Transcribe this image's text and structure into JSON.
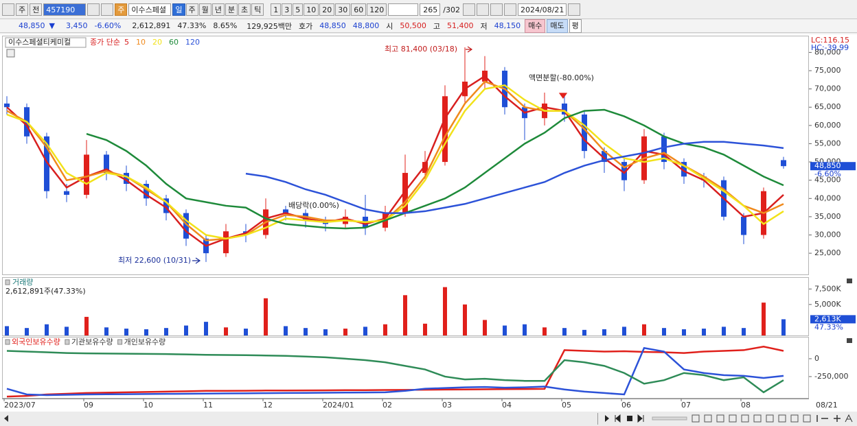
{
  "toolbar": {
    "market": "주",
    "mode": "전",
    "code": "457190",
    "type_badge": "주",
    "stock_name": "이수스페셜",
    "periods": [
      "일",
      "주",
      "월",
      "년",
      "분",
      "초",
      "틱"
    ],
    "intervals": [
      "1",
      "3",
      "5",
      "10",
      "20",
      "30",
      "60",
      "120"
    ],
    "view_count": "265",
    "total_count": "/302",
    "date": "2024/08/21"
  },
  "quote": {
    "price": "48,850",
    "arrow": "▼",
    "change": "3,450",
    "change_pct": "-6.60%",
    "volume": "2,612,891",
    "volume_ratio": "47.33%",
    "turnover": "8.65%",
    "amount": "129,925백만",
    "ask_label": "호가",
    "ask": "48,850",
    "bid": "48,800",
    "open_label": "시",
    "open": "50,500",
    "high_label": "고",
    "high": "51,400",
    "low_label": "저",
    "low": "48,150",
    "buttons": [
      "매수",
      "매도",
      "평"
    ]
  },
  "chart_data": [
    {
      "type": "candlestick",
      "title": "이수스페셜티케미컬",
      "legend_prefix": "종가 단순",
      "categories": [
        "2023/07",
        null,
        null,
        null,
        "09",
        null,
        null,
        "10",
        null,
        null,
        "11",
        null,
        null,
        "12",
        null,
        null,
        "2024/01",
        null,
        null,
        "02",
        null,
        null,
        "03",
        null,
        null,
        "04",
        null,
        null,
        "05",
        null,
        null,
        "06",
        null,
        null,
        "07",
        null,
        null,
        "08",
        null,
        null
      ],
      "last_date": "08/21",
      "open": [
        66000,
        65000,
        57000,
        42000,
        41000,
        52000,
        47000,
        44000,
        40000,
        36000,
        29000,
        25000,
        31000,
        30000,
        37000,
        36000,
        34000,
        33000,
        35000,
        32000,
        36000,
        47000,
        50000,
        68000,
        72000,
        75000,
        65000,
        62000,
        66000,
        63000,
        53000,
        50000,
        45000,
        57000,
        50000,
        46000,
        45000,
        35000,
        30000,
        50500
      ],
      "high": [
        68000,
        66000,
        58000,
        44000,
        56000,
        53000,
        49000,
        45000,
        41000,
        37000,
        30000,
        33000,
        33000,
        40000,
        38000,
        37000,
        35000,
        37000,
        41000,
        38000,
        52000,
        53000,
        71000,
        81400,
        79000,
        76000,
        66000,
        69000,
        68000,
        64000,
        54000,
        51000,
        59000,
        58000,
        51000,
        47000,
        46000,
        36000,
        43000,
        51400
      ],
      "low": [
        63000,
        55000,
        40000,
        39000,
        40000,
        45000,
        42000,
        38000,
        34000,
        27000,
        22600,
        24000,
        28000,
        29000,
        34000,
        32000,
        31000,
        32000,
        30000,
        31000,
        35000,
        45000,
        49000,
        66000,
        70000,
        63000,
        56000,
        60000,
        61000,
        51000,
        47000,
        42000,
        44000,
        48000,
        44000,
        43000,
        34000,
        27500,
        29000,
        48150
      ],
      "close": [
        65000,
        57000,
        42000,
        41000,
        52000,
        47000,
        44000,
        40000,
        36000,
        29000,
        25000,
        31000,
        30000,
        37000,
        36000,
        34000,
        33000,
        35000,
        32000,
        36000,
        47000,
        50000,
        68000,
        72000,
        75000,
        65000,
        62000,
        66000,
        63000,
        53000,
        50000,
        45000,
        57000,
        50000,
        46000,
        45000,
        35000,
        30000,
        42000,
        48850
      ],
      "up_color": "#e0201b",
      "down_color": "#1f4fd6",
      "series": [
        {
          "name": "5",
          "color": "#d81f1f",
          "values": [
            65000,
            60000,
            50000,
            43000,
            46000,
            48000,
            45000,
            41000,
            37500,
            31000,
            27000,
            29000,
            30500,
            34500,
            36000,
            34500,
            33500,
            34500,
            33000,
            34500,
            42000,
            49000,
            62000,
            70000,
            73500,
            68000,
            63500,
            65000,
            64000,
            56000,
            51000,
            47000,
            53000,
            52000,
            47500,
            45000,
            40000,
            35000,
            36000,
            41000
          ]
        },
        {
          "name": "10",
          "color": "#f08a1c",
          "values": [
            64000,
            61000,
            54000,
            45000,
            46000,
            47500,
            46000,
            42500,
            39000,
            33000,
            28500,
            29000,
            30000,
            33500,
            35500,
            35000,
            34000,
            34000,
            33500,
            34000,
            39000,
            46000,
            57000,
            66000,
            72000,
            70000,
            65000,
            64000,
            64000,
            59000,
            53000,
            48500,
            51000,
            52500,
            49000,
            46000,
            42500,
            38000,
            36000,
            38500
          ]
        },
        {
          "name": "20",
          "color": "#f2e21a",
          "values": [
            63000,
            61000,
            55000,
            47000,
            44000,
            47000,
            46000,
            43000,
            39000,
            34000,
            30000,
            29000,
            30000,
            32000,
            34500,
            34000,
            33500,
            34000,
            33500,
            34000,
            38000,
            45000,
            55000,
            64000,
            70000,
            71000,
            67000,
            64000,
            64000,
            60000,
            55000,
            51000,
            50000,
            51000,
            49000,
            45500,
            42000,
            38000,
            33000,
            36500
          ]
        },
        {
          "name": "60",
          "color": "#1e8a3a",
          "values": [
            null,
            null,
            null,
            null,
            57700,
            56000,
            53000,
            49000,
            44000,
            40000,
            39000,
            38000,
            37500,
            34500,
            33000,
            32500,
            32000,
            31800,
            32000,
            34000,
            36000,
            38000,
            40000,
            43000,
            47000,
            51000,
            55000,
            58000,
            62000,
            64000,
            64300,
            62500,
            60000,
            57000,
            55000,
            54000,
            52000,
            49000,
            46000,
            43600
          ]
        },
        {
          "name": "120",
          "color": "#2c52d8",
          "values": [
            null,
            null,
            null,
            null,
            null,
            null,
            null,
            null,
            null,
            null,
            null,
            null,
            46800,
            46000,
            44500,
            42500,
            41000,
            39000,
            37000,
            36000,
            36000,
            36500,
            37500,
            38500,
            40000,
            41500,
            43000,
            44500,
            47000,
            49000,
            50500,
            51500,
            52500,
            54000,
            55000,
            55500,
            55500,
            55000,
            54500,
            53800
          ]
        }
      ],
      "ylim": [
        19200,
        84400
      ],
      "yticks": [
        {
          "value": 25000,
          "label": "25,000"
        },
        {
          "value": 30000,
          "label": "30,000"
        },
        {
          "value": 35000,
          "label": "35,000"
        },
        {
          "value": 40000,
          "label": "40,000"
        },
        {
          "value": 45000,
          "label": "45,000"
        },
        {
          "value": 50000,
          "label": "50,000"
        },
        {
          "value": 55000,
          "label": "55,000"
        },
        {
          "value": 60000,
          "label": "60,000"
        },
        {
          "value": 65000,
          "label": "65,000"
        },
        {
          "value": 70000,
          "label": "70,000"
        },
        {
          "value": 75000,
          "label": "75,000"
        },
        {
          "value": 80000,
          "label": "80,000"
        }
      ],
      "annotations": [
        "최고 81,400 (03/18)",
        "최저 22,600 (10/31)",
        "액면분할(-80.00%)",
        "배당락(0.00%)"
      ],
      "lc_label": "LC:116.15",
      "hc_label": "HC:-39.99",
      "last_price_label": "48,850",
      "last_change_label": "-6.60%"
    },
    {
      "type": "bar",
      "title": "거래량",
      "subtitle": "2,612,891주(47.33%)",
      "values": [
        1500,
        1200,
        1800,
        1400,
        3000,
        1300,
        1100,
        1000,
        1200,
        1600,
        2200,
        1300,
        1100,
        6000,
        1500,
        1200,
        1000,
        1100,
        1400,
        1800,
        6500,
        1900,
        7800,
        5000,
        2500,
        1600,
        1800,
        1300,
        1200,
        900,
        1000,
        1400,
        1800,
        1200,
        1000,
        1100,
        1400,
        1200,
        5300,
        2613
      ],
      "value_labels": [
        null,
        null,
        null,
        null,
        null,
        null,
        null,
        null,
        null,
        null,
        null,
        null,
        null,
        null,
        null,
        null,
        null,
        null,
        null,
        null,
        null,
        null,
        null,
        null,
        null,
        null,
        null,
        null,
        null,
        null,
        null,
        null,
        null,
        null,
        null,
        null,
        null,
        null,
        null,
        "2,613K"
      ],
      "ratio_label": "47.33%",
      "ylim": [
        0,
        9300
      ],
      "yticks": [
        {
          "value": 5000,
          "label": "5,000K"
        },
        {
          "value": 7500,
          "label": "7,500K"
        }
      ]
    },
    {
      "type": "line",
      "series": [
        {
          "name": "외국인보유수량",
          "color": "#e0201b",
          "values": [
            -530000,
            -520000,
            -500000,
            -490000,
            -480000,
            -475000,
            -470000,
            -465000,
            -460000,
            -455000,
            -450000,
            -450000,
            -448000,
            -445000,
            -445000,
            -443000,
            -442000,
            -440000,
            -440000,
            -438000,
            -436000,
            -434000,
            -432000,
            -430000,
            -428000,
            -426000,
            -424000,
            -422000,
            120000,
            110000,
            100000,
            105000,
            95000,
            90000,
            80000,
            100000,
            110000,
            120000,
            170000,
            110000
          ]
        },
        {
          "name": "기관보유수량",
          "color": "#2c52d8",
          "values": [
            -420000,
            -500000,
            -510000,
            -505000,
            -500000,
            -498000,
            -496000,
            -494000,
            -492000,
            -490000,
            -488000,
            -486000,
            -484000,
            -482000,
            -480000,
            -478000,
            -476000,
            -474000,
            -472000,
            -470000,
            -450000,
            -420000,
            -410000,
            -400000,
            -395000,
            -405000,
            -400000,
            -390000,
            -430000,
            -460000,
            -480000,
            -500000,
            150000,
            100000,
            -150000,
            -200000,
            -230000,
            -240000,
            -270000,
            -240000
          ]
        },
        {
          "name": "개인보유수량",
          "color": "#2e8b57",
          "values": [
            110000,
            100000,
            90000,
            80000,
            75000,
            72000,
            70000,
            68000,
            65000,
            60000,
            55000,
            52000,
            50000,
            45000,
            40000,
            30000,
            20000,
            0,
            -20000,
            -50000,
            -100000,
            -150000,
            -250000,
            -290000,
            -280000,
            -300000,
            -310000,
            -310000,
            -20000,
            -50000,
            -100000,
            -200000,
            -350000,
            -300000,
            -200000,
            -230000,
            -300000,
            -260000,
            -470000,
            -300000
          ]
        }
      ],
      "ylim": [
        -548000,
        297000
      ],
      "yticks": [
        0,
        {
          "value": -250000,
          "label": "-250,000"
        }
      ]
    }
  ]
}
